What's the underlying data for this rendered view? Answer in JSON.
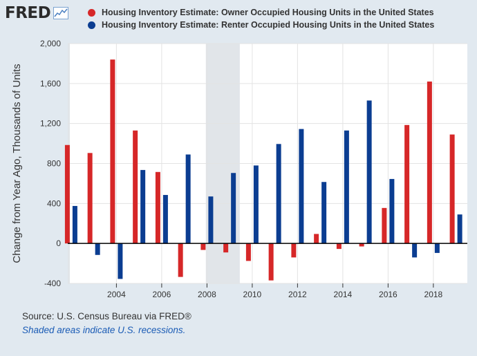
{
  "brand": {
    "name": "FRED",
    "icon": "line-chart-icon"
  },
  "footer": {
    "source": "Source: U.S. Census Bureau via FRED®",
    "note": "Shaded areas indicate U.S. recessions."
  },
  "chart_data": {
    "type": "bar",
    "title": "",
    "xlabel": "",
    "ylabel": "Change from Year Ago, Thousands of Units",
    "ylim": [
      -400,
      2000
    ],
    "yticks": [
      -400,
      0,
      400,
      800,
      1200,
      1600,
      2000
    ],
    "ytick_labels": [
      "-400",
      "0",
      "400",
      "800",
      "1,200",
      "1,600",
      "2,000"
    ],
    "xlim": [
      2001.85,
      2019.5
    ],
    "xticks": [
      2004,
      2006,
      2008,
      2010,
      2012,
      2014,
      2016,
      2018
    ],
    "xtick_labels": [
      "2004",
      "2006",
      "2008",
      "2010",
      "2012",
      "2014",
      "2016",
      "2018"
    ],
    "recessions": [
      [
        2001.85,
        2001.9
      ],
      [
        2007.95,
        2009.45
      ]
    ],
    "grid": true,
    "legend_position": "top",
    "categories": [
      2002,
      2003,
      2004,
      2005,
      2006,
      2007,
      2008,
      2009,
      2010,
      2011,
      2012,
      2013,
      2014,
      2015,
      2016,
      2017,
      2018,
      2019
    ],
    "series": [
      {
        "name": "Housing Inventory Estimate: Owner Occupied Housing Units in the United States",
        "color": "#d62728",
        "values": [
          985,
          905,
          1840,
          1130,
          715,
          -335,
          -65,
          -90,
          -175,
          -370,
          -140,
          95,
          -55,
          -30,
          355,
          1185,
          1620,
          1090
        ]
      },
      {
        "name": "Housing Inventory Estimate: Renter Occupied Housing Units in the United States",
        "color": "#0b3d91",
        "values": [
          375,
          -115,
          -355,
          735,
          485,
          890,
          470,
          705,
          780,
          995,
          1145,
          615,
          1130,
          1430,
          645,
          -140,
          -95,
          290
        ]
      }
    ]
  }
}
